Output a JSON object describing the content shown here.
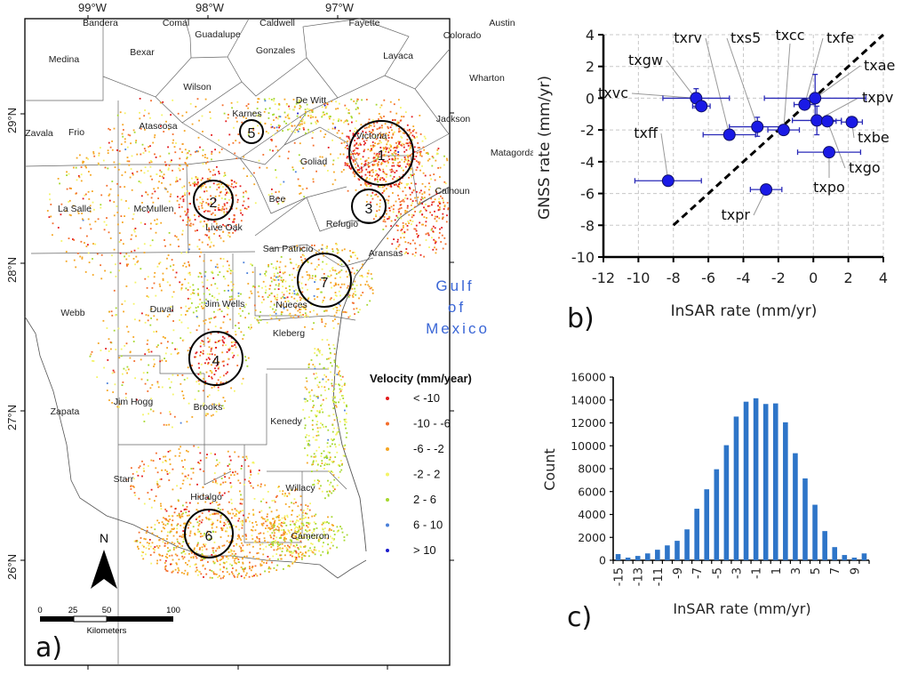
{
  "chart_data": [
    {
      "panel": "a",
      "type": "map",
      "panel_label": "a)",
      "lon_ticks": [
        "99°W",
        "98°W",
        "97°W"
      ],
      "lat_ticks": [
        "29°N",
        "28°N",
        "27°N",
        "26°N"
      ],
      "counties": [
        "Bandera",
        "Comal",
        "Guadalupe",
        "Caldwell",
        "Gonzales",
        "Fayette",
        "Colorado",
        "Austin",
        "Medina",
        "Bexar",
        "Wilson",
        "Lavaca",
        "Wharton",
        "De Witt",
        "Karnes",
        "Jackson",
        "Zavala",
        "Frio",
        "Atascosa",
        "Victoria",
        "Goliad",
        "Matagorda",
        "Calhoun",
        "La Salle",
        "McMullen",
        "Live Oak",
        "Bee",
        "Refugio",
        "San Patricio",
        "Aransas",
        "Webb",
        "Duval",
        "Jim Wells",
        "Nueces",
        "Kleberg",
        "Zapata",
        "Jim Hogg",
        "Brooks",
        "Kenedy",
        "Starr",
        "Hidalgo",
        "Willacy",
        "Cameron"
      ],
      "sea_label": [
        "Gulf",
        "of",
        "Mexico"
      ],
      "circled_areas": [
        "1",
        "2",
        "3",
        "4",
        "5",
        "6",
        "7"
      ],
      "legend": {
        "title": "Velocity (mm/year)",
        "items": [
          {
            "label": "< -10",
            "color": "#e31a1c"
          },
          {
            "label": "-10 -  -6",
            "color": "#f46d2b"
          },
          {
            "label": "-6 - -2",
            "color": "#f5a623"
          },
          {
            "label": "-2 - 2",
            "color": "#f4f466"
          },
          {
            "label": "2 - 6",
            "color": "#a6d82e"
          },
          {
            "label": "6 - 10",
            "color": "#4a7fd9"
          },
          {
            "label": "> 10",
            "color": "#1c1ccc"
          }
        ]
      },
      "north_arrow": "N",
      "scale_bar": {
        "ticks": [
          "0",
          "25",
          "50",
          "100"
        ],
        "unit": "Kilometers"
      }
    },
    {
      "panel": "b",
      "type": "scatter",
      "panel_label": "b)",
      "xlabel": "InSAR rate (mm/yr)",
      "ylabel": "GNSS rate (mm/yr)",
      "xlim": [
        -12,
        4
      ],
      "ylim": [
        -10,
        4
      ],
      "xticks": [
        -12,
        -10,
        -8,
        -6,
        -4,
        -2,
        0,
        2,
        4
      ],
      "yticks": [
        -10,
        -8,
        -6,
        -4,
        -2,
        0,
        2,
        4
      ],
      "grid": true,
      "reference_line": {
        "style": "dashed",
        "from": [
          -8,
          -8
        ],
        "to": [
          4,
          4
        ]
      },
      "point_color": "#1a1ae6",
      "errorbar_color": "#2a2ab8",
      "points": [
        {
          "name": "txvc",
          "x": -6.7,
          "y": 0.0,
          "xerr": 1.9,
          "yerr": 0.6
        },
        {
          "name": "txgw",
          "x": -6.4,
          "y": -0.5,
          "xerr": 0.5,
          "yerr": 0.2
        },
        {
          "name": "txff",
          "x": -8.3,
          "y": -5.2,
          "xerr": 1.9,
          "yerr": 0.3
        },
        {
          "name": "txrv",
          "x": -4.8,
          "y": -2.3,
          "xerr": 1.5,
          "yerr": 0.3
        },
        {
          "name": "txs5",
          "x": -3.2,
          "y": -1.8,
          "xerr": 1.6,
          "yerr": 0.6
        },
        {
          "name": "txcc",
          "x": -1.7,
          "y": -2.0,
          "xerr": 0.9,
          "yerr": 0.2
        },
        {
          "name": "txfe",
          "x": -0.5,
          "y": -0.4,
          "xerr": 0.6,
          "yerr": 0.2
        },
        {
          "name": "txae",
          "x": 0.1,
          "y": 0.0,
          "xerr": 2.9,
          "yerr": 1.5
        },
        {
          "name": "txpv",
          "x": 0.2,
          "y": -1.4,
          "xerr": 1.4,
          "yerr": 0.9
        },
        {
          "name": "txgo",
          "x": 0.8,
          "y": -1.45,
          "xerr": 0.5,
          "yerr": 0.2
        },
        {
          "name": "txbe",
          "x": 2.2,
          "y": -1.5,
          "xerr": 0.6,
          "yerr": 0.2
        },
        {
          "name": "txpo",
          "x": 0.9,
          "y": -3.4,
          "xerr": 1.8,
          "yerr": 0.2
        },
        {
          "name": "txpr",
          "x": -2.7,
          "y": -5.75,
          "xerr": 0.9,
          "yerr": 0.2
        }
      ]
    },
    {
      "panel": "c",
      "type": "bar",
      "panel_label": "c)",
      "xlabel": "InSAR rate (mm/yr)",
      "ylabel": "Count",
      "ylim": [
        0,
        16000
      ],
      "yticks": [
        0,
        2000,
        4000,
        6000,
        8000,
        10000,
        12000,
        14000,
        16000
      ],
      "xtick_labels": [
        "-15",
        "-13",
        "-11",
        "-9",
        "-7",
        "-5",
        "-3",
        "-1",
        "1",
        "3",
        "5",
        "7",
        "9"
      ],
      "bar_color": "#2e75c8",
      "categories": [
        -15,
        -14,
        -13,
        -12,
        -11,
        -10,
        -9,
        -8,
        -7,
        -6,
        -5,
        -4,
        -3,
        -2,
        -1,
        0,
        1,
        2,
        3,
        4,
        5,
        6,
        7,
        8,
        9,
        10
      ],
      "values": [
        540,
        230,
        380,
        600,
        920,
        1300,
        1700,
        2700,
        4500,
        6200,
        7950,
        10050,
        12550,
        13850,
        14150,
        13650,
        13700,
        12050,
        9350,
        7150,
        4850,
        2550,
        1150,
        460,
        230,
        600
      ]
    }
  ]
}
